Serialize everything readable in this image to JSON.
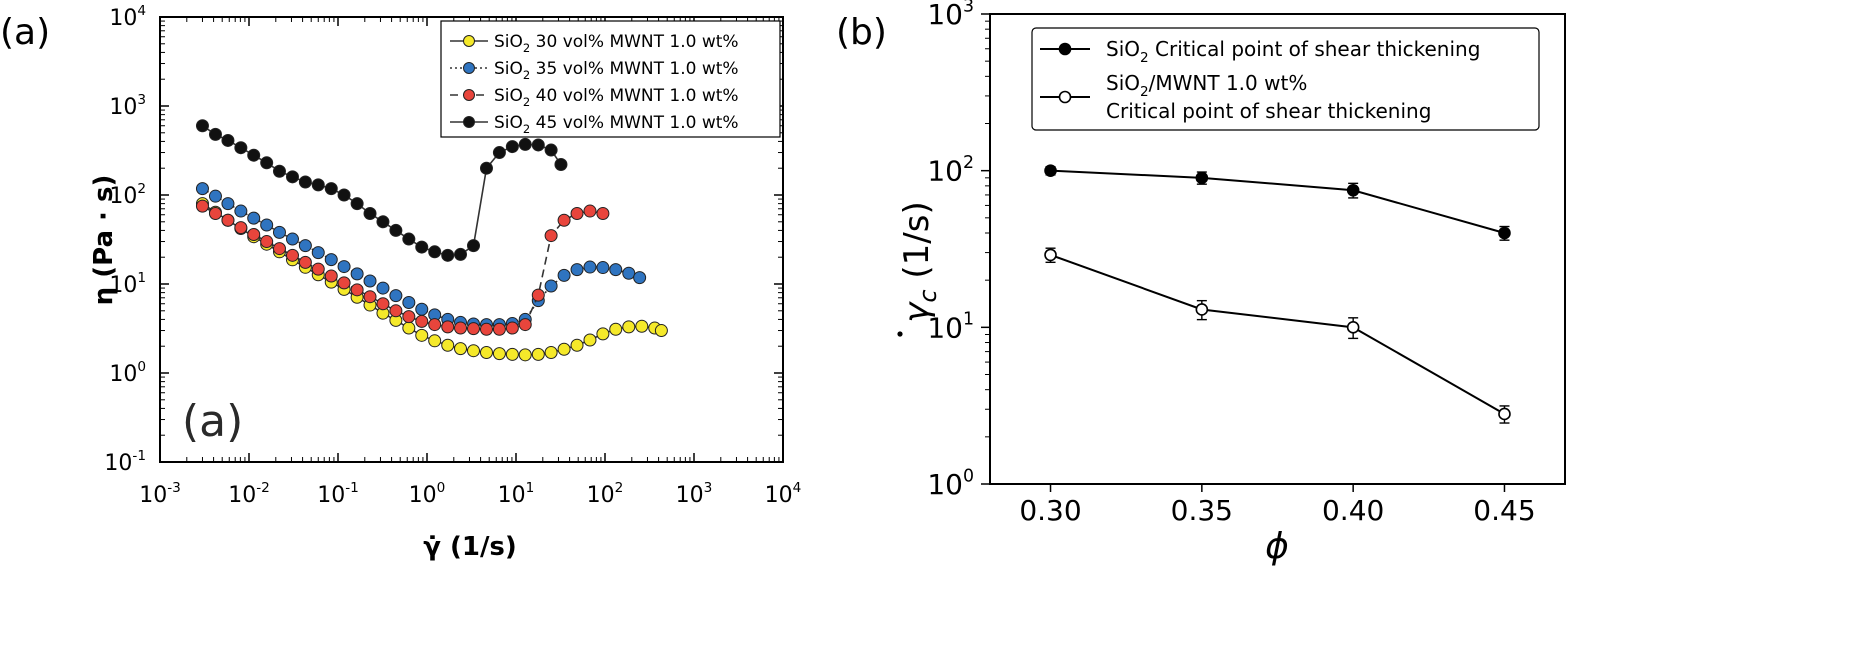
{
  "panel_a_tag": "(a)",
  "panel_b_tag": "(b)",
  "panel_a_inner_label": "(a)",
  "chart_data": [
    {
      "type": "scatter",
      "panel": "a",
      "xscale": "log",
      "yscale": "log",
      "xlim": [
        0.001,
        10000
      ],
      "ylim": [
        0.1,
        10000
      ],
      "xlabel": "γ̇ (1/s)",
      "ylabel": "η (Pa · s)",
      "xticks": [
        0.001,
        0.01,
        0.1,
        1,
        10,
        100,
        1000,
        10000
      ],
      "yticks": [
        0.1,
        1,
        10,
        100,
        1000,
        10000
      ],
      "xtick_labels": [
        {
          "base": "10",
          "exp": "-3"
        },
        {
          "base": "10",
          "exp": "-2"
        },
        {
          "base": "10",
          "exp": "-1"
        },
        {
          "base": "10",
          "exp": "0"
        },
        {
          "base": "10",
          "exp": "1"
        },
        {
          "base": "10",
          "exp": "2"
        },
        {
          "base": "10",
          "exp": "3"
        },
        {
          "base": "10",
          "exp": "4"
        }
      ],
      "ytick_labels": [
        {
          "base": "10",
          "exp": "-1"
        },
        {
          "base": "10",
          "exp": "0"
        },
        {
          "base": "10",
          "exp": "1"
        },
        {
          "base": "10",
          "exp": "2"
        },
        {
          "base": "10",
          "exp": "3"
        },
        {
          "base": "10",
          "exp": "4"
        }
      ],
      "legend_position": "top-right",
      "series": [
        {
          "name": "SiO2 30 vol% MWNT 1.0 wt%",
          "legend_parts": [
            "SiO",
            "2",
            " 30 vol% MWNT 1.0 wt%"
          ],
          "color": "#f5e92a",
          "line": "solid",
          "x": [
            0.003,
            0.0042,
            0.0058,
            0.0081,
            0.0113,
            0.0158,
            0.022,
            0.0308,
            0.043,
            0.06,
            0.084,
            0.117,
            0.164,
            0.229,
            0.32,
            0.447,
            0.625,
            0.873,
            1.22,
            1.71,
            2.38,
            3.33,
            4.66,
            6.51,
            9.1,
            12.7,
            17.8,
            24.8,
            34.7,
            48.5,
            67.8,
            94.7,
            132,
            185,
            259,
            362,
            430
          ],
          "y": [
            80,
            64,
            52,
            42,
            34,
            28,
            23,
            18.7,
            15.4,
            12.7,
            10.5,
            8.7,
            7.1,
            5.8,
            4.7,
            3.9,
            3.2,
            2.65,
            2.3,
            2.05,
            1.88,
            1.78,
            1.7,
            1.65,
            1.62,
            1.6,
            1.62,
            1.7,
            1.85,
            2.05,
            2.35,
            2.75,
            3.1,
            3.3,
            3.35,
            3.2,
            3.0
          ]
        },
        {
          "name": "SiO2 35 vol% MWNT 1.0 wt%",
          "legend_parts": [
            "SiO",
            "2",
            " 35 vol% MWNT 1.0 wt%"
          ],
          "color": "#2f74c0",
          "line": "dotted",
          "x": [
            0.003,
            0.0042,
            0.0058,
            0.0081,
            0.0113,
            0.0158,
            0.022,
            0.0308,
            0.043,
            0.06,
            0.084,
            0.117,
            0.164,
            0.229,
            0.32,
            0.447,
            0.625,
            0.873,
            1.22,
            1.71,
            2.38,
            3.33,
            4.66,
            6.51,
            9.1,
            12.7,
            17.8,
            24.8,
            34.7,
            48.5,
            67.8,
            94.7,
            132,
            185,
            245
          ],
          "y": [
            118,
            97,
            80,
            66,
            55,
            46,
            38,
            32,
            27,
            22.5,
            18.8,
            15.7,
            13,
            10.8,
            9,
            7.4,
            6.2,
            5.2,
            4.5,
            4,
            3.7,
            3.55,
            3.5,
            3.5,
            3.6,
            4.0,
            6.5,
            9.5,
            12.5,
            14.5,
            15.5,
            15.3,
            14.5,
            13.2,
            11.8
          ]
        },
        {
          "name": "SiO2 40 vol% MWNT 1.0 wt%",
          "legend_parts": [
            "SiO",
            "2",
            " 40 vol% MWNT 1.0 wt%"
          ],
          "color": "#e8453c",
          "line": "dashed",
          "x": [
            0.003,
            0.0042,
            0.0058,
            0.0081,
            0.0113,
            0.0158,
            0.022,
            0.0308,
            0.043,
            0.06,
            0.084,
            0.117,
            0.164,
            0.229,
            0.32,
            0.447,
            0.625,
            0.873,
            1.22,
            1.71,
            2.38,
            3.33,
            4.66,
            6.51,
            9.1,
            12.7,
            17.8,
            24.8,
            34.7,
            48.5,
            67.8,
            94.7
          ],
          "y": [
            75,
            62,
            52,
            43,
            36,
            30,
            25,
            21,
            17.5,
            14.7,
            12.3,
            10.3,
            8.6,
            7.2,
            6,
            5,
            4.3,
            3.8,
            3.5,
            3.3,
            3.2,
            3.15,
            3.1,
            3.1,
            3.2,
            3.5,
            7.5,
            35,
            52,
            62,
            66,
            62
          ]
        },
        {
          "name": "SiO2 45 vol% MWNT 1.0 wt%",
          "legend_parts": [
            "SiO",
            "2",
            " 45 vol% MWNT 1.0 wt%"
          ],
          "color": "#111111",
          "line": "solid",
          "x": [
            0.003,
            0.0042,
            0.0058,
            0.0081,
            0.0113,
            0.0158,
            0.022,
            0.0308,
            0.043,
            0.06,
            0.084,
            0.117,
            0.164,
            0.229,
            0.32,
            0.447,
            0.625,
            0.873,
            1.22,
            1.71,
            2.38,
            3.33,
            4.66,
            6.51,
            9.1,
            12.7,
            17.8,
            24.8,
            32
          ],
          "y": [
            600,
            480,
            410,
            340,
            280,
            230,
            185,
            160,
            140,
            130,
            118,
            100,
            80,
            62,
            50,
            40,
            32,
            26,
            23,
            21,
            21.5,
            27,
            200,
            300,
            350,
            370,
            365,
            320,
            220
          ]
        }
      ]
    },
    {
      "type": "line",
      "panel": "b",
      "xscale": "linear",
      "yscale": "log",
      "xlim": [
        0.28,
        0.47
      ],
      "ylim": [
        1,
        1000
      ],
      "xlabel": "ϕ",
      "ylabel_main": "γ",
      "ylabel_sub": "c",
      "ylabel_units": " (1/s)",
      "xticks": [
        0.3,
        0.35,
        0.4,
        0.45
      ],
      "xtick_labels": [
        "0.30",
        "0.35",
        "0.40",
        "0.45"
      ],
      "yticks": [
        1,
        10,
        100,
        1000
      ],
      "ytick_labels": [
        {
          "base": "10",
          "exp": "0"
        },
        {
          "base": "10",
          "exp": "1"
        },
        {
          "base": "10",
          "exp": "2"
        },
        {
          "base": "10",
          "exp": "3"
        }
      ],
      "legend_position": "top-right",
      "series": [
        {
          "name": "SiO2 Critical point of shear thickening",
          "legend_parts": [
            "SiO",
            "2",
            " Critical point of shear thickening"
          ],
          "marker": "filled-circle",
          "x": [
            0.3,
            0.35,
            0.4,
            0.45
          ],
          "y": [
            100,
            90,
            75,
            40
          ],
          "err": [
            6,
            8,
            8,
            4
          ]
        },
        {
          "name": "SiO2/MWNT 1.0 wt% Critical point of shear thickening",
          "legend_parts": [
            "SiO",
            "2",
            "/MWNT 1.0  wt%"
          ],
          "legend_line2": "Critical point of shear thickening",
          "marker": "open-circle",
          "x": [
            0.3,
            0.35,
            0.4,
            0.45
          ],
          "y": [
            29,
            13,
            10,
            2.8
          ],
          "err": [
            3,
            1.8,
            1.5,
            0.35
          ]
        }
      ]
    }
  ]
}
